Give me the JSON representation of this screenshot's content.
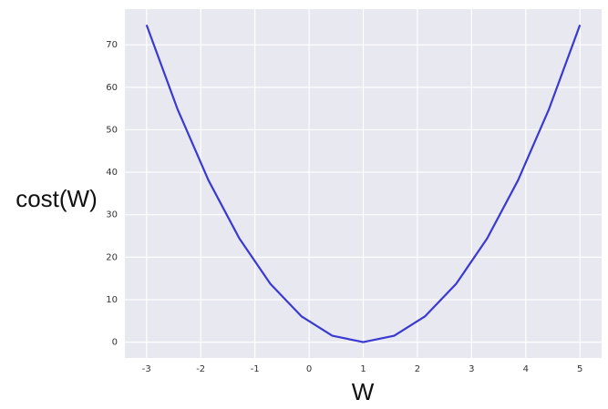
{
  "chart_data": {
    "type": "line",
    "x_label": "W",
    "y_label": "cost(W)",
    "x": [
      -3,
      -2.4286,
      -1.8571,
      -1.2857,
      -0.7143,
      -0.1429,
      0.4286,
      1.0,
      1.5714,
      2.1429,
      2.7143,
      3.2857,
      3.8571,
      4.4286,
      5
    ],
    "series": [
      {
        "color": "#3a3ad0",
        "values": [
          74.67,
          54.86,
          38.1,
          24.38,
          13.71,
          6.1,
          1.52,
          0,
          1.52,
          6.1,
          13.71,
          24.38,
          38.1,
          54.86,
          74.67
        ]
      }
    ],
    "xlim": [
      -3.4,
      5.4
    ],
    "xticks": [
      -3,
      -2,
      -1,
      0,
      1,
      2,
      3,
      4,
      5
    ],
    "ylim": [
      -3.73,
      78.4
    ],
    "yticks": [
      0,
      10,
      20,
      30,
      40,
      50,
      60,
      70
    ],
    "grid": true,
    "background": "#e8e8f1"
  }
}
